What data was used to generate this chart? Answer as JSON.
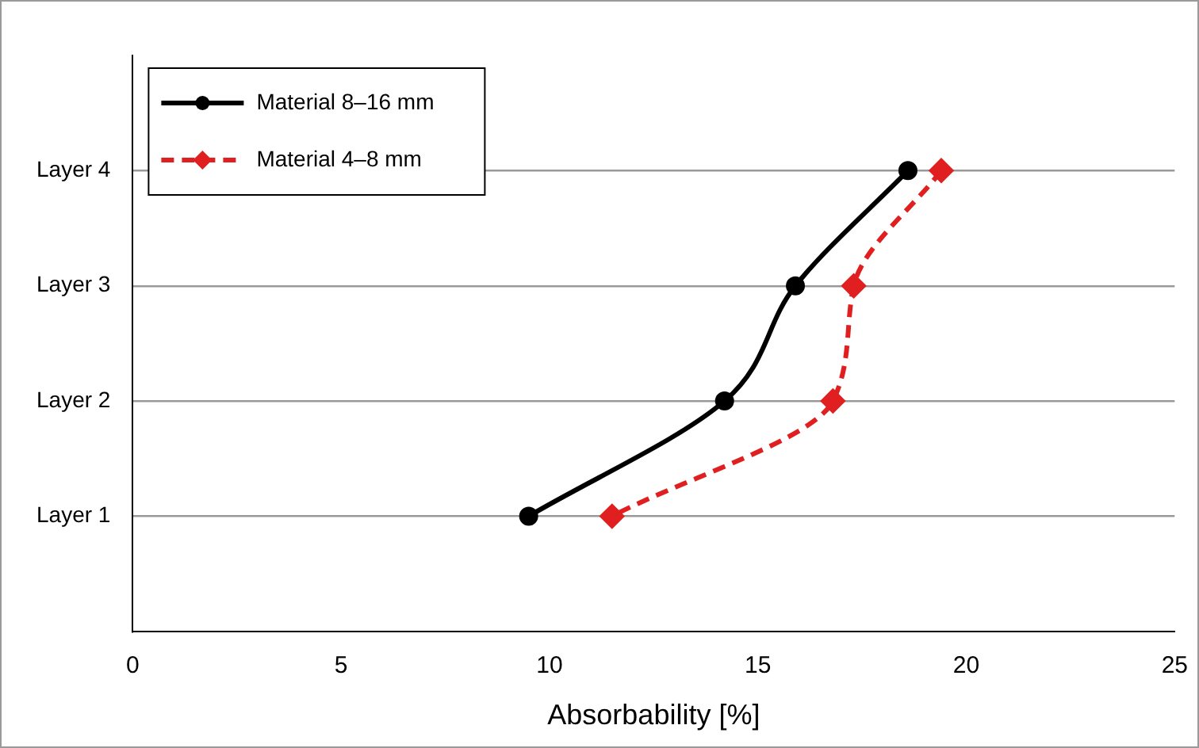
{
  "chart_data": {
    "type": "line",
    "orientation": "horizontal",
    "xlabel": "Absorbability [%]",
    "categories": [
      "Layer 4",
      "Layer 3",
      "Layer 2",
      "Layer 1"
    ],
    "series": [
      {
        "name": "Material 8–16 mm",
        "color": "#000000",
        "values": [
          18.6,
          15.9,
          14.2,
          9.5
        ],
        "marker": "circle",
        "line_style": "solid"
      },
      {
        "name": "Material 4–8 mm",
        "color": "#e02020",
        "values": [
          19.4,
          17.3,
          16.8,
          11.5
        ],
        "marker": "diamond",
        "line_style": "dashed"
      }
    ],
    "xlim": [
      0,
      25
    ],
    "xticks": [
      0,
      5,
      10,
      15,
      20,
      25
    ],
    "grid": "y",
    "legend": "top left"
  }
}
